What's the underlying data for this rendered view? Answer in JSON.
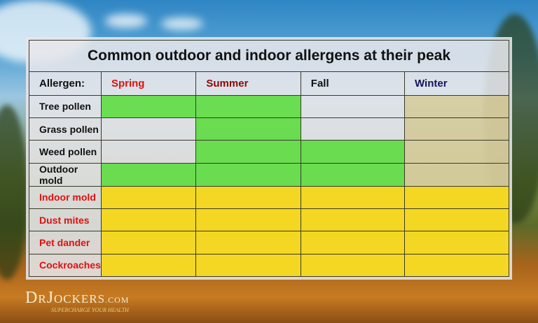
{
  "title": "Common outdoor and indoor allergens at their peak",
  "header": {
    "allergen": "Allergen:",
    "seasons": [
      {
        "label": "Spring",
        "color": "#e01010"
      },
      {
        "label": "Summer",
        "color": "#8b0a0a"
      },
      {
        "label": "Fall",
        "color": "#111111"
      },
      {
        "label": "Winter",
        "color": "#14145a"
      }
    ]
  },
  "colors": {
    "outdoor_peak": "#5adc3c",
    "indoor_peak": "#f5d714",
    "indoor_label": "#e01010"
  },
  "rows": [
    {
      "name": "Tree pollen",
      "type": "outdoor",
      "peak": [
        true,
        true,
        false,
        false
      ]
    },
    {
      "name": "Grass pollen",
      "type": "outdoor",
      "peak": [
        false,
        true,
        false,
        false
      ]
    },
    {
      "name": "Weed pollen",
      "type": "outdoor",
      "peak": [
        false,
        true,
        true,
        false
      ]
    },
    {
      "name": "Outdoor mold",
      "type": "outdoor",
      "peak": [
        true,
        true,
        true,
        false
      ]
    },
    {
      "name": "Indoor mold",
      "type": "indoor",
      "peak": [
        true,
        true,
        true,
        true
      ]
    },
    {
      "name": "Dust mites",
      "type": "indoor",
      "peak": [
        true,
        true,
        true,
        true
      ]
    },
    {
      "name": "Pet dander",
      "type": "indoor",
      "peak": [
        true,
        true,
        true,
        true
      ]
    },
    {
      "name": "Cockroaches",
      "type": "indoor",
      "peak": [
        true,
        true,
        true,
        true
      ]
    }
  ],
  "logo": {
    "text": "DrJockers.com",
    "tagline": "SUPERCHARGE YOUR HEALTH"
  }
}
